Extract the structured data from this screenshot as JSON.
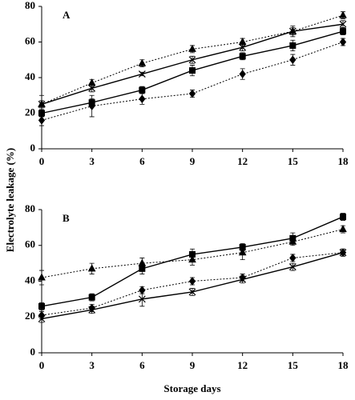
{
  "axis_labels": {
    "y": "Electrolyte leakage  (%)",
    "x": "Storage days"
  },
  "chart_data": [
    {
      "type": "line",
      "panel": "A",
      "x": [
        0,
        3,
        6,
        9,
        12,
        15,
        18
      ],
      "xlim": [
        0,
        18
      ],
      "xticks": [
        0,
        3,
        6,
        9,
        12,
        15,
        18
      ],
      "ylim": [
        0,
        80
      ],
      "yticks": [
        0,
        20,
        40,
        60,
        80
      ],
      "series": [
        {
          "color": "#000000",
          "marker": "square",
          "dash": "solid",
          "values": [
            20,
            26,
            33,
            44,
            52,
            58,
            66
          ],
          "errors": [
            2,
            2,
            2,
            3,
            2,
            3,
            2
          ]
        },
        {
          "color": "#000000",
          "marker": "triangle",
          "dash": "dotted",
          "values": [
            25,
            37,
            48,
            56,
            60,
            66,
            75
          ],
          "errors": [
            5,
            2,
            2,
            2,
            2,
            2,
            2
          ]
        },
        {
          "color": "#000000",
          "marker": "cross",
          "dash": "solid",
          "values": [
            25,
            34,
            42,
            50,
            57,
            66,
            70
          ],
          "errors": [
            2,
            2,
            1,
            2,
            2,
            3,
            2
          ]
        },
        {
          "color": "#000000",
          "marker": "diamond",
          "dash": "dotted",
          "values": [
            16,
            24,
            28,
            31,
            42,
            50,
            60
          ],
          "errors": [
            3,
            6,
            3,
            2,
            3,
            3,
            2
          ]
        }
      ]
    },
    {
      "type": "line",
      "panel": "B",
      "x": [
        0,
        3,
        6,
        9,
        12,
        15,
        18
      ],
      "xlim": [
        0,
        18
      ],
      "xticks": [
        0,
        3,
        6,
        9,
        12,
        15,
        18
      ],
      "ylim": [
        0,
        80
      ],
      "yticks": [
        0,
        20,
        40,
        60,
        80
      ],
      "series": [
        {
          "color": "#000000",
          "marker": "square",
          "dash": "solid",
          "values": [
            26,
            31,
            47,
            55,
            59,
            64,
            76
          ],
          "errors": [
            2,
            2,
            3,
            3,
            2,
            3,
            2
          ]
        },
        {
          "color": "#000000",
          "marker": "triangle",
          "dash": "dotted",
          "values": [
            42,
            47,
            50,
            52,
            56,
            62,
            69
          ],
          "errors": [
            4,
            3,
            3,
            3,
            4,
            2,
            2
          ]
        },
        {
          "color": "#000000",
          "marker": "diamond",
          "dash": "dotted",
          "values": [
            21,
            25,
            35,
            40,
            42,
            53,
            56
          ],
          "errors": [
            2,
            2,
            2,
            2,
            2,
            2,
            2
          ]
        },
        {
          "color": "#000000",
          "marker": "cross",
          "dash": "solid",
          "values": [
            19,
            24,
            30,
            34,
            41,
            48,
            56
          ],
          "errors": [
            2,
            2,
            4,
            2,
            2,
            2,
            2
          ]
        }
      ]
    }
  ]
}
